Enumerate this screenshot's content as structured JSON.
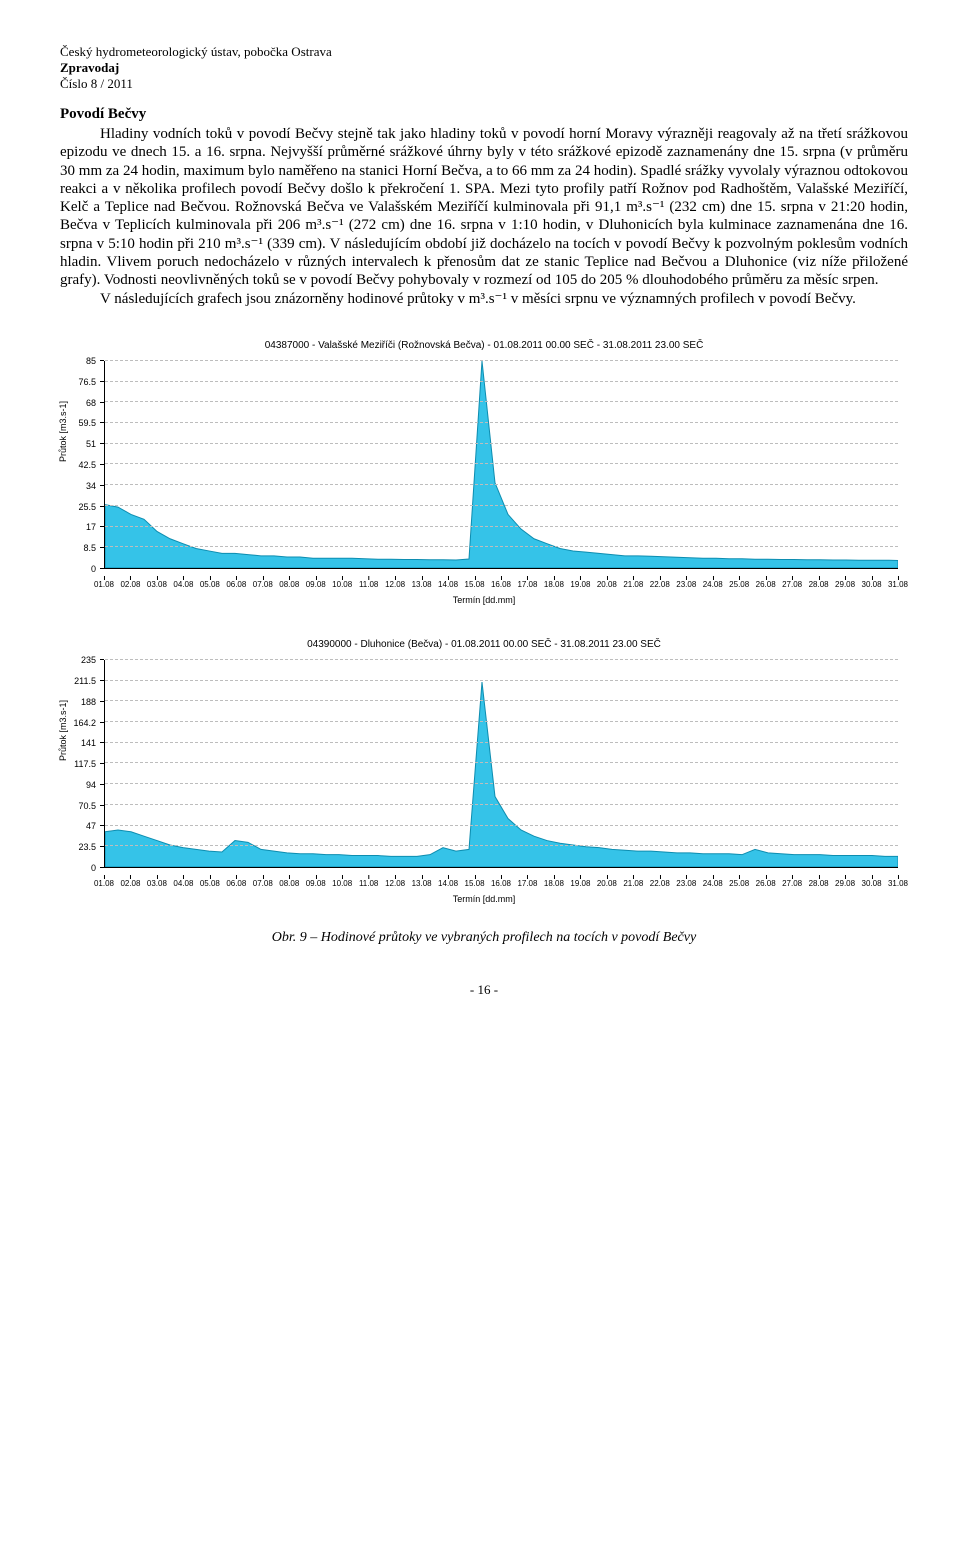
{
  "header": {
    "org": "Český hydrometeorologický ústav, pobočka Ostrava",
    "pub": "Zpravodaj",
    "issue": "Číslo 8 / 2011"
  },
  "section_title": "Povodí Bečvy",
  "body": {
    "p1": "Hladiny vodních toků v povodí Bečvy stejně tak jako hladiny toků v povodí horní Moravy výrazněji reagovaly až na třetí srážkovou epizodu ve dnech 15. a 16. srpna. Nejvyšší průměrné srážkové úhrny byly v této srážkové epizodě zaznamenány dne 15. srpna (v průměru 30 mm za 24 hodin, maximum bylo naměřeno na stanici Horní Bečva, a to 66 mm za 24 hodin). Spadlé srážky vyvolaly výraznou odtokovou reakci a v několika profilech povodí Bečvy došlo k překročení 1. SPA. Mezi tyto profily patří Rožnov pod Radhoštěm, Valašské Meziříčí, Kelč a Teplice nad Bečvou. Rožnovská Bečva ve Valašském Meziříčí kulminovala při 91,1 m³.s⁻¹ (232 cm) dne 15. srpna v 21:20 hodin, Bečva v Teplicích kulminovala při 206 m³.s⁻¹ (272 cm) dne 16. srpna v 1:10 hodin, v Dluhonicích byla kulminace zaznamenána dne 16. srpna v 5:10 hodin při 210 m³.s⁻¹ (339 cm). V následujícím období již docházelo na tocích v povodí Bečvy k pozvolným poklesům vodních hladin. Vlivem poruch nedocházelo v různých intervalech k přenosům dat ze stanic Teplice nad Bečvou a Dluhonice (viz níže přiložené grafy). Vodnosti neovlivněných toků se v povodí Bečvy pohybovaly v rozmezí od 105 do 205 % dlouhodobého průměru za měsíc srpen.",
    "p2": "V následujících grafech jsou znázorněny hodinové průtoky v m³.s⁻¹ v měsíci srpnu ve významných profilech v povodí Bečvy."
  },
  "chart1": {
    "title": "04387000  -  Valašské Meziříči (Rožnovská Bečva)  -  01.08.2011 00.00 SEČ - 31.08.2011 23.00 SEČ",
    "y_label": "Průtok [m3.s-1]",
    "x_label": "Termín [dd.mm]",
    "y_ticks": [
      0,
      8.5,
      17,
      25.5,
      34,
      42.5,
      51,
      59.5,
      68,
      76.5,
      85
    ],
    "x_ticks": [
      "01.08",
      "02.08",
      "03.08",
      "04.08",
      "05.08",
      "06.08",
      "07.08",
      "08.08",
      "09.08",
      "10.08",
      "11.08",
      "12.08",
      "13.08",
      "14.08",
      "15.08",
      "16.08",
      "17.08",
      "18.08",
      "19.08",
      "20.08",
      "21.08",
      "22.08",
      "23.08",
      "24.08",
      "25.08",
      "26.08",
      "27.08",
      "28.08",
      "29.08",
      "30.08",
      "31.08"
    ],
    "ylim": [
      0,
      85
    ],
    "fill_color": "#35c3e8",
    "stroke_color": "#0d8db0",
    "grid_color": "#bdbdbd",
    "background_color": "#ffffff",
    "values_12h": [
      26,
      25,
      22,
      20,
      15,
      12,
      10,
      8,
      7,
      6,
      6,
      5.5,
      5,
      5,
      4.5,
      4.5,
      4,
      4,
      4,
      4,
      3.8,
      3.6,
      3.6,
      3.5,
      3.5,
      3.4,
      3.4,
      3.3,
      3.7,
      85,
      35,
      22,
      16,
      12,
      10,
      8,
      7,
      6.5,
      6,
      5.5,
      5,
      5,
      4.8,
      4.6,
      4.4,
      4.2,
      4,
      4,
      3.8,
      3.8,
      3.6,
      3.6,
      3.5,
      3.5,
      3.4,
      3.4,
      3.3,
      3.3,
      3.2,
      3.2,
      3.2,
      3.1
    ]
  },
  "chart2": {
    "title": "04390000  -  Dluhonice (Bečva)  -  01.08.2011 00.00 SEČ - 31.08.2011 23.00 SEČ",
    "y_label": "Průtok [m3.s-1]",
    "x_label": "Termín [dd.mm]",
    "y_ticks": [
      0,
      23.5,
      47,
      70.5,
      94,
      117.5,
      141,
      164.2,
      188,
      211.5,
      235
    ],
    "x_ticks": [
      "01.08",
      "02.08",
      "03.08",
      "04.08",
      "05.08",
      "06.08",
      "07.08",
      "08.08",
      "09.08",
      "10.08",
      "11.08",
      "12.08",
      "13.08",
      "14.08",
      "15.08",
      "16.08",
      "17.08",
      "18.08",
      "19.08",
      "20.08",
      "21.08",
      "22.08",
      "23.08",
      "24.08",
      "25.08",
      "26.08",
      "27.08",
      "28.08",
      "29.08",
      "30.08",
      "31.08"
    ],
    "ylim": [
      0,
      235
    ],
    "fill_color": "#35c3e8",
    "stroke_color": "#0d8db0",
    "grid_color": "#bdbdbd",
    "background_color": "#ffffff",
    "values_12h": [
      40,
      42,
      40,
      35,
      30,
      25,
      22,
      20,
      18,
      17,
      30,
      28,
      20,
      18,
      16,
      15,
      15,
      14,
      14,
      13,
      13,
      13,
      12,
      12,
      12,
      14,
      22,
      18,
      20,
      210,
      80,
      55,
      42,
      35,
      30,
      27,
      25,
      23,
      22,
      20,
      19,
      18,
      18,
      17,
      16,
      16,
      15,
      15,
      15,
      14,
      20,
      16,
      15,
      14,
      14,
      14,
      13,
      13,
      13,
      13,
      12,
      12
    ]
  },
  "caption": "Obr. 9 – Hodinové průtoky ve vybraných profilech na tocích v povodí Bečvy",
  "page_num": "- 16 -"
}
